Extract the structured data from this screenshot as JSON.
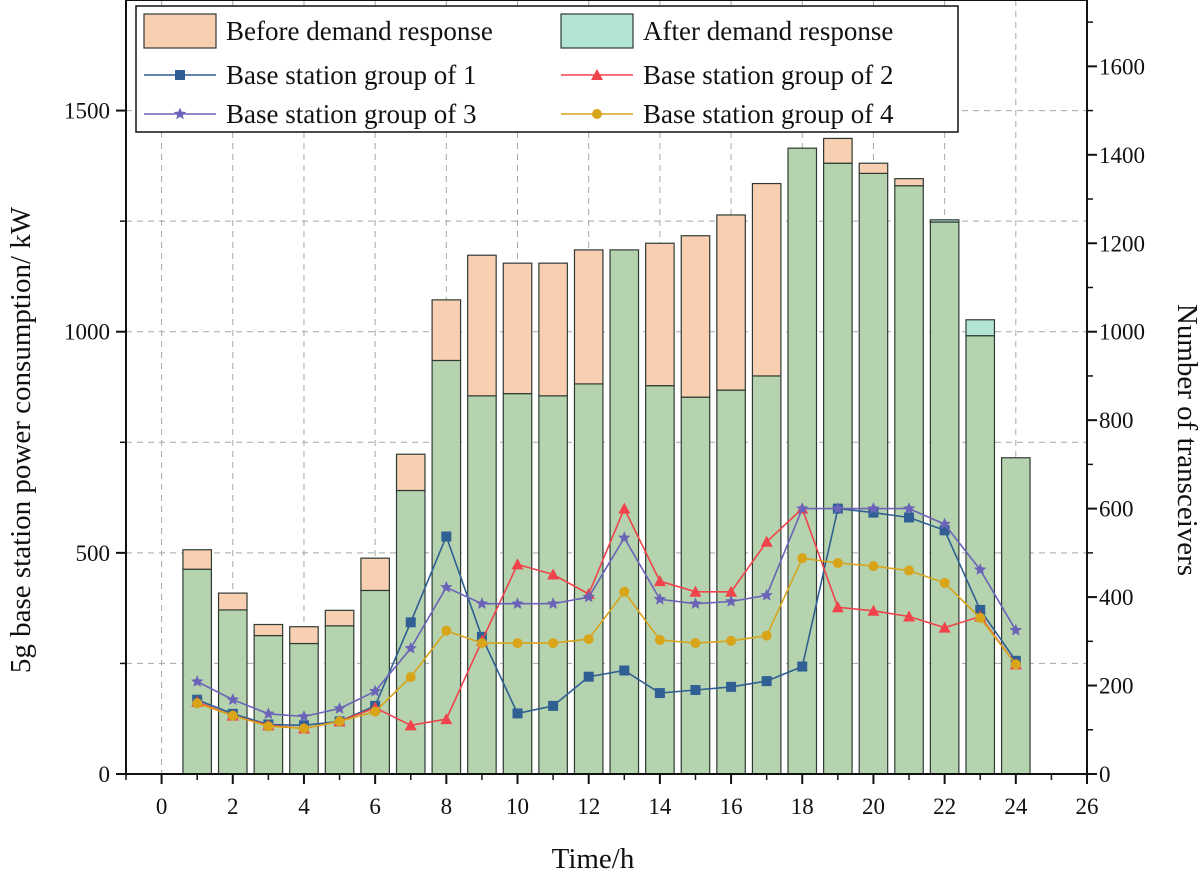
{
  "colors": {
    "before_fill": "#f8cfb0",
    "after_fill": "#b2e5d3",
    "overlap_fill": "#b5d3ae",
    "bar_stroke": "#2f3a34",
    "group1": "#2f5f93",
    "group2": "#f0434b",
    "group3": "#6b63b8",
    "group4": "#d8a41a",
    "grid": "#a8a8a8"
  },
  "chart_data": {
    "type": "bar",
    "xlabel": "Time/h",
    "ylabel": "5g base station power consumption/ kW",
    "y2label": "Number of transceivers",
    "xlim": [
      -1,
      26
    ],
    "ylim": [
      0,
      1750
    ],
    "y2lim": [
      0,
      1750
    ],
    "x_ticks": [
      "0",
      "2",
      "4",
      "6",
      "8",
      "10",
      "12",
      "14",
      "16",
      "18",
      "20",
      "22",
      "24",
      "26"
    ],
    "y_ticks": [
      "0",
      "500",
      "1000",
      "1500"
    ],
    "y2_ticks": [
      "0",
      "200",
      "400",
      "600",
      "800",
      "1000",
      "1200",
      "1400",
      "1600"
    ],
    "grid": true,
    "legend_position": "top",
    "hours": [
      1,
      2,
      3,
      4,
      5,
      6,
      7,
      8,
      9,
      10,
      11,
      12,
      13,
      14,
      15,
      16,
      17,
      18,
      19,
      20,
      21,
      22,
      23,
      24
    ],
    "bars": [
      {
        "name": "Before demand response",
        "values": [
          507,
          409,
          338,
          333,
          370,
          488,
          723,
          1072,
          1173,
          1155,
          1155,
          1185,
          1185,
          1200,
          1217,
          1264,
          1335,
          1415,
          1437,
          1381,
          1346,
          1248,
          991,
          715
        ]
      },
      {
        "name": "After demand response",
        "values": [
          463,
          371,
          313,
          295,
          335,
          415,
          641,
          935,
          855,
          860,
          855,
          882,
          1185,
          878,
          852,
          868,
          900,
          1415,
          1381,
          1358,
          1330,
          1253,
          1027,
          715
        ]
      }
    ],
    "series": [
      {
        "name": "Base station group of 1",
        "values": [
          168,
          136,
          112,
          110,
          119,
          154,
          343,
          537,
          310,
          137,
          154,
          220,
          234,
          183,
          190,
          197,
          210,
          243,
          600,
          591,
          580,
          551,
          371,
          256
        ]
      },
      {
        "name": "Base station group of 2",
        "values": [
          163,
          132,
          110,
          103,
          119,
          150,
          110,
          124,
          301,
          474,
          451,
          407,
          600,
          436,
          412,
          412,
          525,
          600,
          377,
          369,
          356,
          331,
          356,
          248
        ]
      },
      {
        "name": "Base station group of 3",
        "values": [
          209,
          168,
          136,
          130,
          148,
          187,
          284,
          422,
          385,
          385,
          385,
          400,
          534,
          395,
          385,
          390,
          404,
          600,
          600,
          600,
          600,
          565,
          462,
          325
        ]
      },
      {
        "name": "Base station group of 4",
        "values": [
          160,
          132,
          108,
          103,
          119,
          141,
          219,
          324,
          296,
          296,
          296,
          305,
          412,
          303,
          296,
          301,
          313,
          488,
          477,
          470,
          460,
          432,
          353,
          248
        ]
      }
    ]
  }
}
